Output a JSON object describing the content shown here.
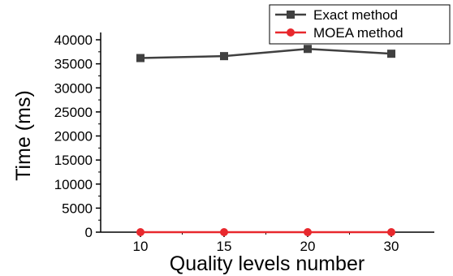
{
  "chart_data": {
    "type": "line",
    "x": [
      "10",
      "15",
      "20",
      "30"
    ],
    "xlabel": "Quality levels number",
    "ylabel": "Time (ms)",
    "ylim": [
      0,
      40000
    ],
    "yticks": [
      0,
      5000,
      10000,
      15000,
      20000,
      25000,
      30000,
      35000,
      40000
    ],
    "grid": false,
    "legend_position": "top-right",
    "series": [
      {
        "name": "Exact method",
        "values": [
          36200,
          36600,
          38100,
          37100
        ],
        "color": "#404040",
        "marker": "square"
      },
      {
        "name": "MOEA method",
        "values": [
          0,
          0,
          0,
          0
        ],
        "color": "#e8282d",
        "marker": "circle"
      }
    ]
  }
}
